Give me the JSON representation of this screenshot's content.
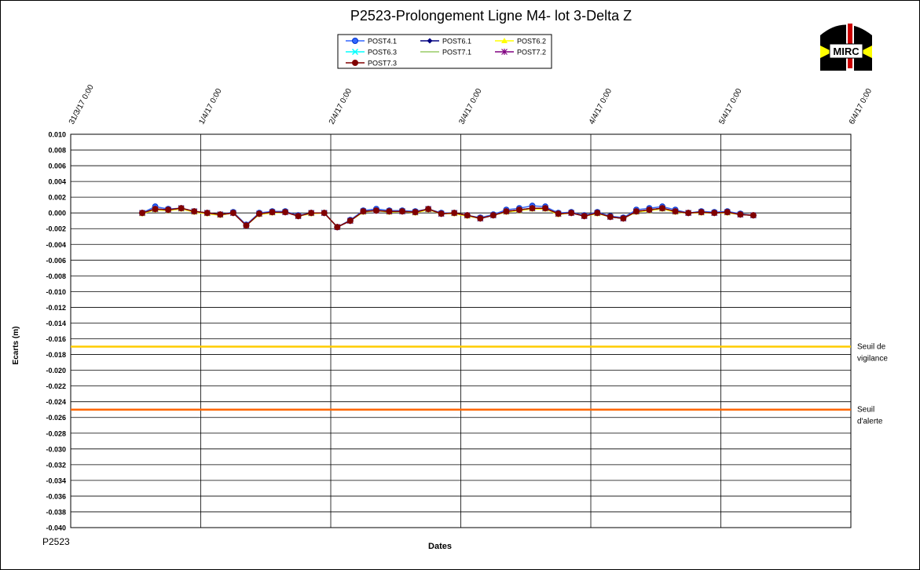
{
  "chart_data": {
    "type": "line",
    "title": "P2523-Prolongement  Ligne  M4- lot 3-Delta Z",
    "x_label": "Dates",
    "y_label": "Ecarts (m)",
    "footer": "P2523",
    "logo_text": "MIRC",
    "xlim": [
      0,
      6
    ],
    "xticks": [
      {
        "value": 0,
        "label": "31/3/17 0:00"
      },
      {
        "value": 1,
        "label": "1/4/17 0:00"
      },
      {
        "value": 2,
        "label": "2/4/17 0:00"
      },
      {
        "value": 3,
        "label": "3/4/17 0:00"
      },
      {
        "value": 4,
        "label": "4/4/17 0:00"
      },
      {
        "value": 5,
        "label": "5/4/17 0:00"
      },
      {
        "value": 6,
        "label": "6/4/17 0:00"
      }
    ],
    "ylim": [
      -0.04,
      0.01
    ],
    "yticks": [
      {
        "value": 0.01,
        "label": "0.010"
      },
      {
        "value": 0.008,
        "label": "0.008"
      },
      {
        "value": 0.006,
        "label": "0.006"
      },
      {
        "value": 0.004,
        "label": "0.004"
      },
      {
        "value": 0.002,
        "label": "0.002"
      },
      {
        "value": 0,
        "label": "0.000"
      },
      {
        "value": -0.002,
        "label": "-0.002"
      },
      {
        "value": -0.004,
        "label": "-0.004"
      },
      {
        "value": -0.006,
        "label": "-0.006"
      },
      {
        "value": -0.008,
        "label": "-0.008"
      },
      {
        "value": -0.01,
        "label": "-0.010"
      },
      {
        "value": -0.012,
        "label": "-0.012"
      },
      {
        "value": -0.014,
        "label": "-0.014"
      },
      {
        "value": -0.016,
        "label": "-0.016"
      },
      {
        "value": -0.018,
        "label": "-0.018"
      },
      {
        "value": -0.02,
        "label": "-0.020"
      },
      {
        "value": -0.022,
        "label": "-0.022"
      },
      {
        "value": -0.024,
        "label": "-0.024"
      },
      {
        "value": -0.026,
        "label": "-0.026"
      },
      {
        "value": -0.028,
        "label": "-0.028"
      },
      {
        "value": -0.03,
        "label": "-0.030"
      },
      {
        "value": -0.032,
        "label": "-0.032"
      },
      {
        "value": -0.034,
        "label": "-0.034"
      },
      {
        "value": -0.036,
        "label": "-0.036"
      },
      {
        "value": -0.038,
        "label": "-0.038"
      },
      {
        "value": -0.04,
        "label": "-0.040"
      }
    ],
    "grid": true,
    "thresholds": [
      {
        "label": [
          "Seuil de",
          "vigilance"
        ],
        "value": -0.017,
        "color": "#ffcc00"
      },
      {
        "label": [
          "Seuil",
          "d'alerte"
        ],
        "value": -0.025,
        "color": "#ff6600"
      }
    ],
    "x": [
      0.55,
      0.65,
      0.75,
      0.85,
      0.95,
      1.05,
      1.15,
      1.25,
      1.35,
      1.45,
      1.55,
      1.65,
      1.75,
      1.85,
      1.95,
      2.05,
      2.15,
      2.25,
      2.35,
      2.45,
      2.55,
      2.65,
      2.75,
      2.85,
      2.95,
      3.05,
      3.15,
      3.25,
      3.35,
      3.45,
      3.55,
      3.65,
      3.75,
      3.85,
      3.95,
      4.05,
      4.15,
      4.25,
      4.35,
      4.45,
      4.55,
      4.65,
      4.75,
      4.85,
      4.95,
      5.05,
      5.15,
      5.25
    ],
    "series": [
      {
        "name": "POST4.1",
        "color": "#3366ff",
        "marker": "circle",
        "values": [
          0.0,
          0.0008,
          0.0005,
          0.0006,
          0.0002,
          0.0,
          -0.0002,
          0.0001,
          -0.0015,
          0.0,
          0.0002,
          0.0002,
          -0.0003,
          0.0,
          0.0,
          -0.0018,
          -0.0009,
          0.0003,
          0.0005,
          0.0003,
          0.0003,
          0.0002,
          0.0005,
          0.0,
          0.0,
          -0.0003,
          -0.0006,
          -0.0002,
          0.0004,
          0.0006,
          0.0009,
          0.0008,
          0.0,
          0.0001,
          -0.0003,
          0.0001,
          -0.0004,
          -0.0006,
          0.0004,
          0.0006,
          0.0008,
          0.0004,
          0.0,
          0.0002,
          0.0001,
          0.0002,
          -0.0001,
          -0.0003
        ]
      },
      {
        "name": "POST6.1",
        "color": "#000080",
        "marker": "diamond",
        "values": [
          0.0,
          0.0005,
          0.0004,
          0.0006,
          0.0002,
          0.0,
          -0.0002,
          0.0,
          -0.0016,
          -0.0001,
          0.0001,
          0.0001,
          -0.0004,
          0.0,
          0.0,
          -0.0018,
          -0.001,
          0.0002,
          0.0003,
          0.0002,
          0.0002,
          0.0001,
          0.0005,
          -0.0001,
          0.0,
          -0.0003,
          -0.0007,
          -0.0003,
          0.0002,
          0.0004,
          0.0006,
          0.0006,
          -0.0001,
          0.0,
          -0.0004,
          0.0,
          -0.0005,
          -0.0007,
          0.0002,
          0.0004,
          0.0006,
          0.0002,
          0.0,
          0.0001,
          0.0,
          0.0001,
          -0.0002,
          -0.0003
        ]
      },
      {
        "name": "POST6.2",
        "color": "#ffff00",
        "marker": "triangle",
        "values": [
          -0.0001,
          0.0004,
          0.0003,
          0.0005,
          0.0001,
          -0.0001,
          -0.0003,
          0.0,
          -0.0016,
          -0.0002,
          0.0,
          0.0001,
          -0.0004,
          -0.0001,
          0.0,
          -0.0018,
          -0.001,
          0.0001,
          0.0003,
          0.0001,
          0.0002,
          0.0,
          0.0004,
          -0.0001,
          -0.0001,
          -0.0004,
          -0.0007,
          -0.0003,
          0.0001,
          0.0003,
          0.0005,
          0.0005,
          -0.0002,
          0.0,
          -0.0004,
          -0.0001,
          -0.0005,
          -0.0007,
          0.0001,
          0.0003,
          0.0005,
          0.0001,
          0.0,
          0.0,
          0.0,
          0.0,
          -0.0002,
          -0.0003
        ]
      },
      {
        "name": "POST6.3",
        "color": "#00ffff",
        "marker": "x",
        "values": [
          0.0,
          0.0005,
          0.0004,
          0.0006,
          0.0002,
          0.0,
          -0.0002,
          0.0,
          -0.0016,
          -0.0001,
          0.0001,
          0.0001,
          -0.0004,
          0.0,
          0.0,
          -0.0018,
          -0.001,
          0.0002,
          0.0003,
          0.0002,
          0.0002,
          0.0001,
          0.0005,
          -0.0001,
          0.0,
          -0.0003,
          -0.0007,
          -0.0003,
          0.0002,
          0.0004,
          0.0006,
          0.0006,
          -0.0001,
          0.0,
          -0.0004,
          0.0,
          -0.0005,
          -0.0007,
          0.0002,
          0.0004,
          0.0006,
          0.0002,
          0.0,
          0.0001,
          0.0,
          0.0001,
          -0.0002,
          -0.0003
        ]
      },
      {
        "name": "POST7.1",
        "color": "#99cc66",
        "marker": "none",
        "values": [
          0.0,
          0.0005,
          0.0004,
          0.0006,
          0.0002,
          0.0,
          -0.0002,
          0.0,
          -0.0016,
          -0.0001,
          0.0001,
          0.0001,
          -0.0004,
          0.0,
          0.0,
          -0.0018,
          -0.001,
          0.0002,
          0.0003,
          0.0002,
          0.0002,
          0.0001,
          0.0005,
          -0.0001,
          0.0,
          -0.0003,
          -0.0007,
          -0.0003,
          0.0002,
          0.0004,
          0.0006,
          0.0006,
          -0.0001,
          0.0,
          -0.0004,
          0.0,
          -0.0005,
          -0.0007,
          0.0002,
          0.0004,
          0.0006,
          0.0002,
          0.0,
          0.0001,
          0.0,
          0.0001,
          -0.0002,
          -0.0003
        ]
      },
      {
        "name": "POST7.2",
        "color": "#800080",
        "marker": "star",
        "values": [
          0.0,
          0.0005,
          0.0004,
          0.0006,
          0.0002,
          0.0,
          -0.0002,
          0.0,
          -0.0016,
          -0.0001,
          0.0001,
          0.0001,
          -0.0004,
          0.0,
          0.0,
          -0.0018,
          -0.001,
          0.0002,
          0.0003,
          0.0002,
          0.0002,
          0.0001,
          0.0005,
          -0.0001,
          0.0,
          -0.0003,
          -0.0007,
          -0.0003,
          0.0002,
          0.0004,
          0.0006,
          0.0006,
          -0.0001,
          0.0,
          -0.0004,
          0.0,
          -0.0005,
          -0.0007,
          0.0002,
          0.0004,
          0.0006,
          0.0002,
          0.0,
          0.0001,
          0.0,
          0.0001,
          -0.0002,
          -0.0003
        ]
      },
      {
        "name": "POST7.3",
        "color": "#800000",
        "marker": "circle",
        "values": [
          0.0,
          0.0005,
          0.0004,
          0.0006,
          0.0002,
          0.0,
          -0.0002,
          0.0,
          -0.0016,
          -0.0001,
          0.0001,
          0.0001,
          -0.0004,
          0.0,
          0.0,
          -0.0018,
          -0.001,
          0.0002,
          0.0003,
          0.0002,
          0.0002,
          0.0001,
          0.0005,
          -0.0001,
          0.0,
          -0.0003,
          -0.0007,
          -0.0003,
          0.0002,
          0.0004,
          0.0006,
          0.0006,
          -0.0001,
          0.0,
          -0.0004,
          0.0,
          -0.0005,
          -0.0007,
          0.0002,
          0.0004,
          0.0006,
          0.0002,
          0.0,
          0.0001,
          0.0,
          0.0001,
          -0.0002,
          -0.0003
        ]
      }
    ]
  }
}
